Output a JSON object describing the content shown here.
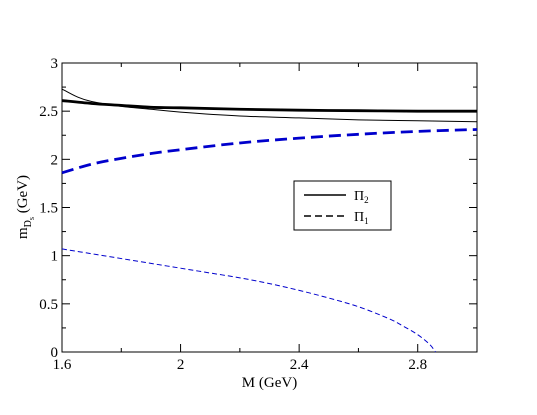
{
  "chart_data": {
    "type": "line",
    "title": "",
    "xlabel": "M (GeV)",
    "ylabel": {
      "main": "m",
      "sub": "D",
      "subsub": "s",
      "unit": "(GeV)"
    },
    "xlim": [
      1.6,
      3.0
    ],
    "ylim": [
      0,
      3
    ],
    "x_ticks": [
      {
        "value": 1.6,
        "label": "1.6"
      },
      {
        "value": 2.0,
        "label": "2"
      },
      {
        "value": 2.4,
        "label": "2.4"
      },
      {
        "value": 2.8,
        "label": "2.8"
      }
    ],
    "y_ticks": [
      {
        "value": 0,
        "label": "0"
      },
      {
        "value": 0.5,
        "label": "0.5"
      },
      {
        "value": 1,
        "label": "1"
      },
      {
        "value": 1.5,
        "label": "1.5"
      },
      {
        "value": 2,
        "label": "2"
      },
      {
        "value": 2.5,
        "label": "2.5"
      },
      {
        "value": 3,
        "label": "3"
      }
    ],
    "grid": false,
    "legend": {
      "placement": "center-right",
      "entries": [
        {
          "label": "Π",
          "sub": "2",
          "style": "solid",
          "color": "#000000"
        },
        {
          "label": "Π",
          "sub": "1",
          "style": "dashed",
          "color": "#000000"
        }
      ]
    },
    "series": [
      {
        "style": "solid",
        "color": "#000000",
        "width": "thick",
        "x": [
          1.6,
          1.7,
          1.8,
          1.9,
          2.0,
          2.2,
          2.4,
          2.6,
          2.8,
          3.0
        ],
        "y": [
          2.61,
          2.58,
          2.56,
          2.54,
          2.535,
          2.52,
          2.51,
          2.505,
          2.5,
          2.5
        ]
      },
      {
        "style": "solid",
        "color": "#000000",
        "width": "thin",
        "x": [
          1.6,
          1.65,
          1.7,
          1.8,
          1.9,
          2.0,
          2.2,
          2.4,
          2.6,
          2.8,
          3.0
        ],
        "y": [
          2.73,
          2.65,
          2.6,
          2.55,
          2.52,
          2.49,
          2.45,
          2.43,
          2.41,
          2.4,
          2.39
        ]
      },
      {
        "style": "dashed",
        "color": "#0000cc",
        "width": "thick",
        "x": [
          1.6,
          1.7,
          1.8,
          1.9,
          2.0,
          2.2,
          2.4,
          2.6,
          2.8,
          3.0
        ],
        "y": [
          1.86,
          1.95,
          2.01,
          2.06,
          2.1,
          2.17,
          2.22,
          2.26,
          2.29,
          2.31
        ]
      },
      {
        "style": "dashed",
        "color": "#0000cc",
        "width": "thin",
        "x": [
          1.6,
          1.7,
          1.8,
          1.9,
          2.0,
          2.1,
          2.2,
          2.3,
          2.4,
          2.5,
          2.6,
          2.7,
          2.75,
          2.8,
          2.84,
          2.86
        ],
        "y": [
          1.07,
          1.02,
          0.97,
          0.92,
          0.87,
          0.82,
          0.77,
          0.71,
          0.64,
          0.56,
          0.47,
          0.35,
          0.27,
          0.18,
          0.08,
          0.0
        ]
      }
    ]
  }
}
